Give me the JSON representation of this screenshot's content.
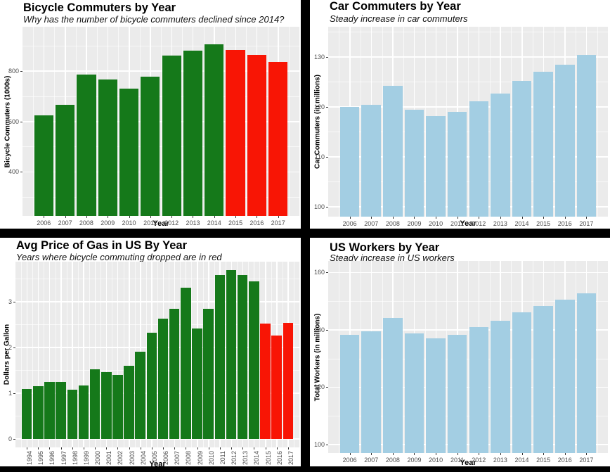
{
  "page": {
    "background_color": "#ffffff",
    "divider_color": "#000000",
    "panel_background": "#ebebeb",
    "grid_color": "#ffffff",
    "green_hex": "#15791a",
    "red_hex": "#f81505",
    "blue_hex": "#a3cee3"
  },
  "chart_data": [
    {
      "type": "bar",
      "title": "Bicycle Commuters by Year",
      "subtitle": "Why has the number of bicycle commuters declined since 2014?",
      "xlabel": "Year",
      "ylabel": "Bicycle Commuters (1000s)",
      "categories": [
        "2006",
        "2007",
        "2008",
        "2009",
        "2010",
        "2011",
        "2012",
        "2013",
        "2014",
        "2015",
        "2016",
        "2017"
      ],
      "values": [
        623,
        665,
        786,
        766,
        731,
        778,
        862,
        881,
        904,
        882,
        863,
        836
      ],
      "colors": [
        "#15791a",
        "#15791a",
        "#15791a",
        "#15791a",
        "#15791a",
        "#15791a",
        "#15791a",
        "#15791a",
        "#15791a",
        "#f81505",
        "#f81505",
        "#f81505"
      ],
      "yticks": [
        400,
        600,
        800
      ],
      "ylim": [
        225,
        975
      ],
      "grid": true,
      "legend": "none",
      "panel_bg": "#ebebeb"
    },
    {
      "type": "bar",
      "title": "Car Commuters by Year",
      "subtitle": "Steady increase in car commuters",
      "xlabel": "Year",
      "ylabel": "Car Commuters (in millions)",
      "categories": [
        "2006",
        "2007",
        "2008",
        "2009",
        "2010",
        "2011",
        "2012",
        "2013",
        "2014",
        "2015",
        "2016",
        "2017"
      ],
      "values": [
        119.9,
        120.4,
        124.2,
        119.4,
        118.1,
        119.0,
        121.1,
        122.7,
        125.1,
        127.0,
        128.4,
        130.4
      ],
      "bar_color": "#a3cee3",
      "yticks": [
        100,
        110,
        120,
        130
      ],
      "ylim": [
        98,
        136
      ],
      "grid": true,
      "legend": "none",
      "panel_bg": "#ebebeb"
    },
    {
      "type": "bar",
      "title": "Avg Price of Gas in US By Year",
      "subtitle": "Years where bicycle commuting dropped are in red",
      "xlabel": "Year",
      "ylabel": "Dollars per Gallon",
      "categories": [
        "1994",
        "1995",
        "1996",
        "1997",
        "1998",
        "1999",
        "2000",
        "2001",
        "2002",
        "2003",
        "2004",
        "2005",
        "2006",
        "2007",
        "2008",
        "2009",
        "2010",
        "2011",
        "2012",
        "2013",
        "2014",
        "2015",
        "2016",
        "2017"
      ],
      "values": [
        1.08,
        1.15,
        1.24,
        1.24,
        1.07,
        1.17,
        1.52,
        1.46,
        1.39,
        1.6,
        1.9,
        2.31,
        2.62,
        2.84,
        3.3,
        2.41,
        2.84,
        3.58,
        3.68,
        3.58,
        3.44,
        2.52,
        2.25,
        2.53
      ],
      "colors": [
        "#15791a",
        "#15791a",
        "#15791a",
        "#15791a",
        "#15791a",
        "#15791a",
        "#15791a",
        "#15791a",
        "#15791a",
        "#15791a",
        "#15791a",
        "#15791a",
        "#15791a",
        "#15791a",
        "#15791a",
        "#15791a",
        "#15791a",
        "#15791a",
        "#15791a",
        "#15791a",
        "#15791a",
        "#f81505",
        "#f81505",
        "#f81505"
      ],
      "yticks": [
        0,
        1,
        2,
        3
      ],
      "ylim": [
        -0.19,
        3.87
      ],
      "grid": true,
      "legend": "none",
      "panel_bg": "#ebebeb",
      "x_labels_rotated": true
    },
    {
      "type": "bar",
      "title": "US Workers by Year",
      "subtitle": "Steady increase in US workers",
      "xlabel": "Year",
      "ylabel": "Total Workers (in millions)",
      "categories": [
        "2006",
        "2007",
        "2008",
        "2009",
        "2010",
        "2011",
        "2012",
        "2013",
        "2014",
        "2015",
        "2016",
        "2017"
      ],
      "values": [
        138.3,
        139.4,
        144.0,
        138.8,
        137.0,
        138.3,
        141.0,
        143.2,
        146.0,
        148.3,
        150.4,
        152.8
      ],
      "bar_color": "#a3cee3",
      "yticks": [
        100,
        120,
        140,
        160
      ],
      "ylim": [
        97,
        164
      ],
      "grid": true,
      "legend": "none",
      "panel_bg": "#ebebeb"
    }
  ]
}
